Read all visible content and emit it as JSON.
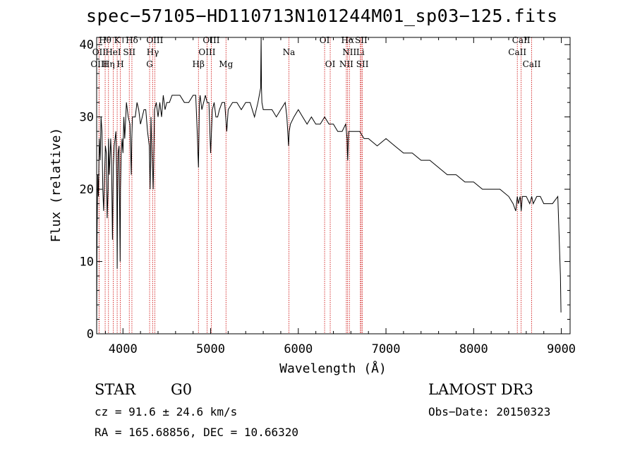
{
  "title": "spec−57105−HD110713N101244M01_sp03−125.fits",
  "info": {
    "class": "STAR",
    "subclass": "G0",
    "survey": "LAMOST DR3",
    "cz_line": "cz = 91.6 ± 24.6 km/s",
    "obs_date_line": "Obs−Date: 20150323",
    "radec_line": "RA = 165.68856, DEC =  10.66320"
  },
  "colors": {
    "line_marker": "#cc0000",
    "spectrum": "#000000",
    "axis": "#000000"
  },
  "chart_data": {
    "type": "line",
    "title": "spec−57105−HD110713N101244M01_sp03−125.fits",
    "xlabel": "Wavelength (Å)",
    "ylabel": "Flux (relative)",
    "xlim": [
      3700,
      9100
    ],
    "ylim": [
      0,
      41
    ],
    "grid": false,
    "legend": "none",
    "xticks": [
      4000,
      5000,
      6000,
      7000,
      8000,
      9000
    ],
    "yticks": [
      0,
      10,
      20,
      30,
      40
    ],
    "series": [
      {
        "name": "spectrum",
        "x": [
          3700,
          3705,
          3712,
          3720,
          3730,
          3740,
          3750,
          3760,
          3770,
          3780,
          3790,
          3800,
          3810,
          3820,
          3830,
          3835,
          3845,
          3860,
          3870,
          3880,
          3890,
          3900,
          3910,
          3920,
          3930,
          3934,
          3938,
          3945,
          3955,
          3962,
          3968,
          3972,
          3980,
          3990,
          4000,
          4010,
          4020,
          4040,
          4060,
          4080,
          4095,
          4101,
          4108,
          4120,
          4140,
          4160,
          4180,
          4200,
          4220,
          4240,
          4260,
          4280,
          4300,
          4310,
          4320,
          4330,
          4340,
          4345,
          4350,
          4360,
          4380,
          4400,
          4420,
          4440,
          4460,
          4480,
          4500,
          4530,
          4560,
          4600,
          4650,
          4700,
          4750,
          4800,
          4830,
          4850,
          4855,
          4861,
          4866,
          4872,
          4880,
          4900,
          4920,
          4940,
          4960,
          4980,
          5000,
          5020,
          5040,
          5060,
          5080,
          5100,
          5130,
          5160,
          5172,
          5184,
          5200,
          5250,
          5300,
          5350,
          5400,
          5450,
          5500,
          5540,
          5570,
          5576,
          5580,
          5585,
          5600,
          5650,
          5700,
          5750,
          5800,
          5850,
          5870,
          5889,
          5896,
          5910,
          5950,
          6000,
          6050,
          6100,
          6150,
          6200,
          6250,
          6300,
          6350,
          6400,
          6450,
          6500,
          6540,
          6556,
          6560,
          6563,
          6568,
          6575,
          6600,
          6650,
          6700,
          6750,
          6800,
          6900,
          7000,
          7100,
          7200,
          7300,
          7400,
          7500,
          7600,
          7700,
          7800,
          7900,
          8000,
          8100,
          8200,
          8300,
          8400,
          8450,
          8480,
          8498,
          8510,
          8530,
          8542,
          8555,
          8580,
          8600,
          8640,
          8662,
          8680,
          8720,
          8760,
          8800,
          8850,
          8880,
          8900,
          8960,
          8990,
          8996,
          9000
        ],
        "y": [
          1,
          14,
          22,
          19,
          27,
          24,
          30,
          28,
          20,
          17,
          22,
          26,
          25,
          16,
          20,
          27,
          22,
          27,
          24,
          13,
          23,
          26,
          27,
          28,
          20,
          9,
          18,
          25,
          26,
          17,
          10,
          20,
          25,
          27,
          25,
          30,
          27,
          32,
          30,
          29,
          22,
          27,
          30,
          30,
          30,
          32,
          31,
          29,
          30,
          31,
          31,
          28,
          26,
          20,
          30,
          25,
          22,
          20,
          24,
          31,
          32,
          30,
          32,
          30,
          33,
          31,
          32,
          32,
          33,
          33,
          33,
          32,
          32,
          33,
          33,
          27,
          25,
          23,
          27,
          32,
          33,
          31,
          32,
          33,
          32,
          32,
          25,
          31,
          32,
          30,
          30,
          31,
          32,
          32,
          30,
          28,
          31,
          32,
          32,
          31,
          32,
          32,
          30,
          32,
          34,
          41,
          34,
          32,
          31,
          31,
          31,
          30,
          31,
          32,
          30,
          26,
          28,
          29,
          30,
          31,
          30,
          29,
          30,
          29,
          29,
          30,
          29,
          29,
          28,
          28,
          29,
          27,
          25,
          24,
          26,
          28,
          28,
          28,
          28,
          27,
          27,
          26,
          27,
          26,
          25,
          25,
          24,
          24,
          23,
          22,
          22,
          21,
          21,
          20,
          20,
          20,
          19,
          18,
          17,
          19,
          18,
          19,
          17,
          19,
          19,
          19,
          18,
          19,
          18,
          19,
          19,
          18,
          18,
          18,
          18,
          19,
          8,
          3,
          3
        ]
      }
    ],
    "spectral_lines": [
      {
        "label": "Hθ",
        "x": 3797,
        "row": 0
      },
      {
        "label": "OII",
        "x": 3727,
        "row": 1
      },
      {
        "label": "OIII",
        "x": 3727,
        "row": 2
      },
      {
        "label": "K",
        "x": 3934,
        "row": 0
      },
      {
        "label": "HeI",
        "x": 3889,
        "row": 1
      },
      {
        "label": "Hη",
        "x": 3835,
        "row": 2
      },
      {
        "label": "SII",
        "x": 4072,
        "row": 1
      },
      {
        "label": "H",
        "x": 3969,
        "row": 2
      },
      {
        "label": "Hδ",
        "x": 4102,
        "row": 0
      },
      {
        "label": "OIII",
        "x": 4363,
        "row": 0
      },
      {
        "label": "Hγ",
        "x": 4340,
        "row": 1
      },
      {
        "label": "G",
        "x": 4304,
        "row": 2
      },
      {
        "label": "OIII",
        "x": 5007,
        "row": 0
      },
      {
        "label": "OIII",
        "x": 4959,
        "row": 1
      },
      {
        "label": "Hβ",
        "x": 4861,
        "row": 2
      },
      {
        "label": "Mg",
        "x": 5175,
        "row": 2
      },
      {
        "label": "Na",
        "x": 5893,
        "row": 1
      },
      {
        "label": "OI",
        "x": 6300,
        "row": 0
      },
      {
        "label": "OI",
        "x": 6364,
        "row": 2
      },
      {
        "label": "Hα",
        "x": 6563,
        "row": 0
      },
      {
        "label": "SII",
        "x": 6717,
        "row": 0
      },
      {
        "label": "NII",
        "x": 6583,
        "row": 1
      },
      {
        "label": "Li",
        "x": 6708,
        "row": 1
      },
      {
        "label": "NII",
        "x": 6548,
        "row": 2
      },
      {
        "label": "SII",
        "x": 6731,
        "row": 2
      },
      {
        "label": "CaII",
        "x": 8542,
        "row": 0
      },
      {
        "label": "CaII",
        "x": 8498,
        "row": 1
      },
      {
        "label": "CaII",
        "x": 8662,
        "row": 2
      }
    ]
  }
}
